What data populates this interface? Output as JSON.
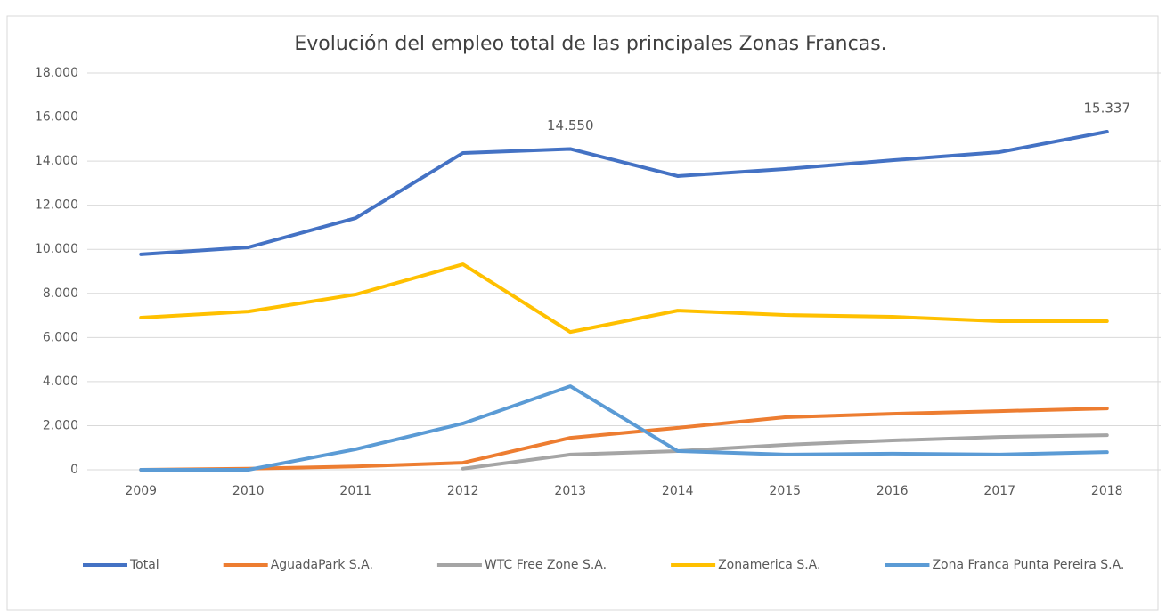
{
  "chart_data": {
    "type": "line",
    "title": "Evolución del empleo total de las principales Zonas Francas.",
    "categories": [
      "2009",
      "2010",
      "2011",
      "2012",
      "2013",
      "2014",
      "2015",
      "2016",
      "2017",
      "2018"
    ],
    "series": [
      {
        "name": "Total",
        "color": "#4472c4",
        "values": [
          9770,
          10090,
          11420,
          14370,
          14550,
          13320,
          13640,
          14040,
          14410,
          15337
        ],
        "value_labels": [
          null,
          null,
          null,
          null,
          "14.550",
          null,
          null,
          null,
          null,
          "15.337"
        ]
      },
      {
        "name": "AguadaPark S.A.",
        "color": "#ed7d31",
        "values": [
          0,
          50,
          150,
          320,
          1450,
          1900,
          2380,
          2540,
          2660,
          2780
        ]
      },
      {
        "name": "WTC Free Zone S.A.",
        "color": "#a5a5a5",
        "values": [
          null,
          null,
          null,
          50,
          690,
          850,
          1130,
          1330,
          1490,
          1570
        ]
      },
      {
        "name": "Zonamerica S.A.",
        "color": "#ffc000",
        "values": [
          6900,
          7180,
          7950,
          9320,
          6250,
          7220,
          7020,
          6940,
          6740,
          6740
        ]
      },
      {
        "name": "Zona Franca Punta Pereira S.A.",
        "color": "#5b9bd5",
        "values": [
          0,
          0,
          930,
          2100,
          3790,
          850,
          690,
          730,
          690,
          800
        ]
      }
    ],
    "ylim": [
      0,
      18000
    ],
    "yticks": [
      0,
      {
        "value": 2000,
        "label": "2.000"
      },
      {
        "value": 4000,
        "label": "4.000"
      },
      {
        "value": 6000,
        "label": "6.000"
      },
      {
        "value": 8000,
        "label": "8.000"
      },
      {
        "value": 10000,
        "label": "10.000"
      },
      {
        "value": 12000,
        "label": "12.000"
      },
      {
        "value": 14000,
        "label": "14.000"
      },
      {
        "value": 16000,
        "label": "16.000"
      },
      {
        "value": 18000,
        "label": "18.000"
      }
    ],
    "grid": true,
    "legend": "bottom"
  }
}
